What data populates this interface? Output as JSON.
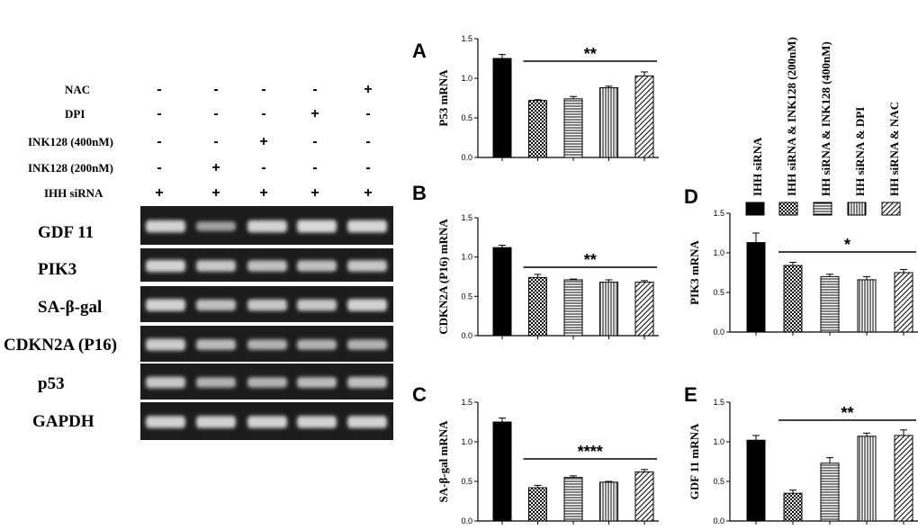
{
  "colors": {
    "ink": "#000000",
    "gel_background": "#1c1c1c",
    "band": "#d9d9d9",
    "paper": "#ffffff"
  },
  "conditions": {
    "rows": [
      {
        "label": "NAC",
        "marks": [
          "-",
          "-",
          "-",
          "-",
          "+"
        ]
      },
      {
        "label": "DPI",
        "marks": [
          "-",
          "-",
          "-",
          "+",
          "-"
        ]
      },
      {
        "label": "INK128 (400nM)",
        "marks": [
          "-",
          "-",
          "+",
          "-",
          "-"
        ]
      },
      {
        "label": "INK128 (200nM)",
        "marks": [
          "-",
          "+",
          "-",
          "-",
          "-"
        ]
      },
      {
        "label": "IHH siRNA",
        "marks": [
          "+",
          "+",
          "+",
          "+",
          "+"
        ]
      }
    ]
  },
  "gel": {
    "rows": [
      {
        "label": "GDF 11",
        "intensities": [
          0.95,
          0.55,
          0.95,
          1.0,
          0.98
        ]
      },
      {
        "label": "PIK3",
        "intensities": [
          0.95,
          0.85,
          0.8,
          0.8,
          0.85
        ]
      },
      {
        "label": "SA-β-gal",
        "intensities": [
          0.95,
          0.8,
          0.85,
          0.85,
          0.95
        ]
      },
      {
        "label": "CDKN2A (P16)",
        "intensities": [
          0.9,
          0.75,
          0.7,
          0.7,
          0.7
        ]
      },
      {
        "label": "p53",
        "intensities": [
          0.85,
          0.7,
          0.7,
          0.75,
          0.8
        ]
      },
      {
        "label": "GAPDH",
        "intensities": [
          0.95,
          0.95,
          0.95,
          0.95,
          0.95
        ]
      }
    ]
  },
  "legend": {
    "entries": [
      {
        "label": "IHH siRNA",
        "pattern": "solid"
      },
      {
        "label": "IHH siRNA  & INK128 (200nM)",
        "pattern": "checker"
      },
      {
        "label": "HH siRNA  & INK128 (400nM)",
        "pattern": "hlines"
      },
      {
        "label": "HH siRNA  & DPI",
        "pattern": "vlines"
      },
      {
        "label": "HH siRNA  &  NAC",
        "pattern": "diag"
      }
    ]
  },
  "chart_data": [
    {
      "type": "bar",
      "panel_letter": "A",
      "ylabel": "P53 mRNA",
      "ylim": [
        0,
        1.5
      ],
      "yticks": [
        "0.0",
        "0.5",
        "1.0",
        "1.5"
      ],
      "values": [
        1.25,
        0.72,
        0.74,
        0.88,
        1.03
      ],
      "errors": [
        0.05,
        0.01,
        0.03,
        0.02,
        0.05
      ],
      "significance": "**",
      "patterns": [
        "solid",
        "checker",
        "hlines",
        "vlines",
        "diag"
      ]
    },
    {
      "type": "bar",
      "panel_letter": "B",
      "ylabel": "CDKN2A (P16) mRNA",
      "ylim": [
        0,
        1.5
      ],
      "yticks": [
        "0.0",
        "0.5",
        "1.0",
        "1.5"
      ],
      "values": [
        1.12,
        0.74,
        0.71,
        0.68,
        0.68
      ],
      "errors": [
        0.03,
        0.04,
        0.01,
        0.03,
        0.02
      ],
      "significance": "**",
      "patterns": [
        "solid",
        "checker",
        "hlines",
        "vlines",
        "diag"
      ]
    },
    {
      "type": "bar",
      "panel_letter": "C",
      "ylabel": "SA-β-gal mRNA",
      "ylim": [
        0,
        1.5
      ],
      "yticks": [
        "0.0",
        "0.5",
        "1.0",
        "1.5"
      ],
      "values": [
        1.25,
        0.42,
        0.55,
        0.49,
        0.62
      ],
      "errors": [
        0.05,
        0.03,
        0.02,
        0.01,
        0.03
      ],
      "significance": "****",
      "patterns": [
        "solid",
        "checker",
        "hlines",
        "vlines",
        "diag"
      ]
    },
    {
      "type": "bar",
      "panel_letter": "D",
      "ylabel": "PIK3 mRNA",
      "ylim": [
        0,
        1.5
      ],
      "yticks": [
        "0.0",
        "0.5",
        "1.0",
        "1.5"
      ],
      "values": [
        1.13,
        0.84,
        0.7,
        0.66,
        0.75
      ],
      "errors": [
        0.12,
        0.04,
        0.03,
        0.04,
        0.04
      ],
      "significance": "*",
      "patterns": [
        "solid",
        "checker",
        "hlines",
        "vlines",
        "diag"
      ]
    },
    {
      "type": "bar",
      "panel_letter": "E",
      "ylabel": "GDF 11 mRNA",
      "ylim": [
        0,
        1.5
      ],
      "yticks": [
        "0.0",
        "0.5",
        "1.0",
        "1.5"
      ],
      "values": [
        1.02,
        0.35,
        0.73,
        1.07,
        1.08
      ],
      "errors": [
        0.06,
        0.04,
        0.07,
        0.04,
        0.07
      ],
      "significance": "**",
      "patterns": [
        "solid",
        "checker",
        "hlines",
        "vlines",
        "diag"
      ]
    }
  ]
}
